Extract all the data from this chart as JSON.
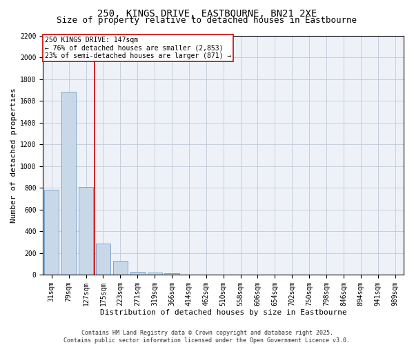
{
  "title_line1": "250, KINGS DRIVE, EASTBOURNE, BN21 2XE",
  "title_line2": "Size of property relative to detached houses in Eastbourne",
  "xlabel": "Distribution of detached houses by size in Eastbourne",
  "ylabel": "Number of detached properties",
  "categories": [
    "31sqm",
    "79sqm",
    "127sqm",
    "175sqm",
    "223sqm",
    "271sqm",
    "319sqm",
    "366sqm",
    "414sqm",
    "462sqm",
    "510sqm",
    "558sqm",
    "606sqm",
    "654sqm",
    "702sqm",
    "750sqm",
    "798sqm",
    "846sqm",
    "894sqm",
    "941sqm",
    "989sqm"
  ],
  "values": [
    780,
    1680,
    810,
    285,
    130,
    30,
    20,
    18,
    5,
    0,
    0,
    0,
    0,
    0,
    0,
    0,
    0,
    0,
    0,
    0,
    0
  ],
  "bar_color": "#c8d8e8",
  "bar_edge_color": "#5a8fc0",
  "vline_color": "#cc0000",
  "annotation_text": "250 KINGS DRIVE: 147sqm\n← 76% of detached houses are smaller (2,853)\n23% of semi-detached houses are larger (871) →",
  "annotation_box_color": "#cc0000",
  "ylim": [
    0,
    2200
  ],
  "yticks": [
    0,
    200,
    400,
    600,
    800,
    1000,
    1200,
    1400,
    1600,
    1800,
    2000,
    2200
  ],
  "grid_color": "#c0c8d8",
  "background_color": "#eef2f8",
  "footer_line1": "Contains HM Land Registry data © Crown copyright and database right 2025.",
  "footer_line2": "Contains public sector information licensed under the Open Government Licence v3.0.",
  "title_fontsize": 10,
  "subtitle_fontsize": 9,
  "axis_label_fontsize": 8,
  "tick_fontsize": 7,
  "annotation_fontsize": 7,
  "footer_fontsize": 6
}
